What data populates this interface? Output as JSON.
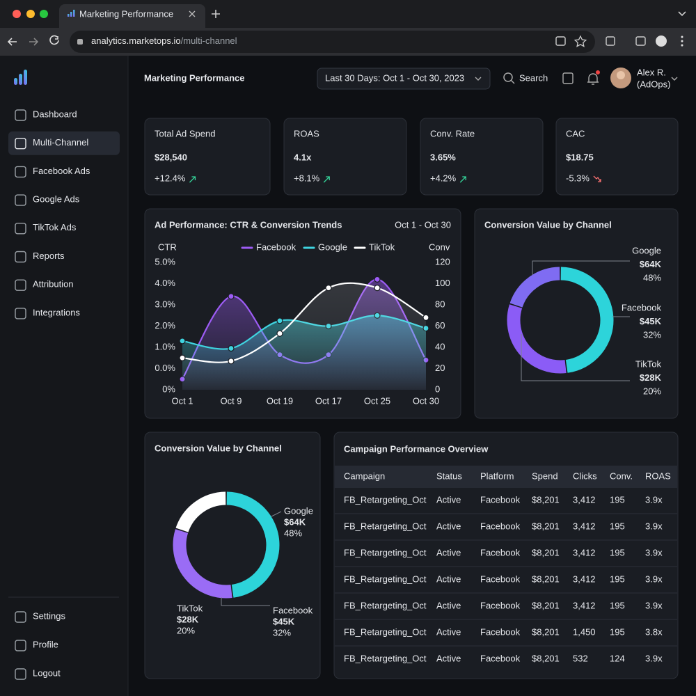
{
  "browser": {
    "tab_title": "Marketing Performance",
    "url_host": "analytics.marketops.io",
    "url_path": "/multi-channel"
  },
  "sidebar": {
    "nav": [
      "Dashboard",
      "Multi-Channel",
      "Facebook Ads",
      "Google Ads",
      "TikTok Ads",
      "Reports",
      "Attribution",
      "Integrations"
    ],
    "active": 1,
    "footer": [
      "Settings",
      "Profile",
      "Logout"
    ]
  },
  "header": {
    "title": "Marketing Performance",
    "date_range": "Last 30 Days: Oct 1 - Oct 30, 2023",
    "search": "Search",
    "user_name": "Alex R.",
    "user_role": "(AdOps)"
  },
  "kpis": [
    {
      "label": "Total Ad Spend",
      "value": "$28,540",
      "change": "+12.4%",
      "trend": "up"
    },
    {
      "label": "ROAS",
      "value": "4.1x",
      "change": "+8.1%",
      "trend": "up"
    },
    {
      "label": "Conv. Rate",
      "value": "3.65%",
      "change": "+4.2%",
      "trend": "up"
    },
    {
      "label": "CAC",
      "value": "$18.75",
      "change": "-5.3%",
      "trend": "down"
    }
  ],
  "chart_data": [
    {
      "type": "line",
      "title": "Ad Performance: CTR & Conversion Trends",
      "subtitle": "Oct 1 - Oct 30",
      "y_label": "CTR",
      "y2_label": "Conv",
      "categories": [
        "Oct 1",
        "Oct 9",
        "Oct 19",
        "Oct 17",
        "Oct 25",
        "Oct 30"
      ],
      "series": [
        {
          "name": "Facebook",
          "color": "#9d5cf5",
          "axis": "y2",
          "values": [
            10,
            88,
            33,
            33,
            104,
            28
          ]
        },
        {
          "name": "Google",
          "color": "#3fd4e0",
          "axis": "y2",
          "values": [
            46,
            39,
            65,
            60,
            70,
            58
          ]
        },
        {
          "name": "TikTok",
          "color": "#ffffff",
          "axis": "y2",
          "values": [
            30,
            27,
            53,
            96,
            96,
            68
          ]
        }
      ],
      "ylim": [
        -1,
        5
      ],
      "yticks": [
        {
          "value": -1,
          "label": "0%"
        },
        {
          "value": 0,
          "label": "0.0%"
        },
        {
          "value": 1,
          "label": "1.0%"
        },
        {
          "value": 2,
          "label": "2.0%"
        },
        {
          "value": 3,
          "label": "3.0%"
        },
        {
          "value": 4,
          "label": "4.0%"
        },
        {
          "value": 5,
          "label": "5.0%"
        }
      ],
      "y2lim": [
        0,
        120
      ],
      "y2ticks": [
        0,
        20,
        40,
        60,
        80,
        100,
        120
      ]
    },
    {
      "type": "donut",
      "title": "Conversion Value by Channel",
      "categories": [
        "Google",
        "Facebook",
        "TikTok"
      ],
      "values": [
        48,
        32,
        20
      ],
      "value_labels": [
        "48%",
        "32%",
        "20%"
      ],
      "amount_labels": [
        "$64K",
        "$45K",
        "$28K"
      ],
      "colors": [
        "#2dd4da",
        "#8b5cf6",
        "#7f6cf2"
      ]
    },
    {
      "type": "donut",
      "title": "Conversion Value by Channel",
      "categories": [
        "Google",
        "Facebook",
        "TikTok"
      ],
      "values": [
        48,
        32,
        20
      ],
      "value_labels": [
        "48%",
        "32%",
        "20%"
      ],
      "amount_labels": [
        "$64K",
        "$45K",
        "$28K"
      ],
      "colors": [
        "#2dd4da",
        "#9a6cf5",
        "#ffffff"
      ]
    }
  ],
  "table": {
    "title": "Campaign Performance Overview",
    "header": [
      "Campaign",
      "Status",
      "Platform",
      "Spend",
      "Clicks",
      "Conv.",
      "ROAS"
    ],
    "rows": [
      [
        "FB_Retargeting_Oct",
        "Active",
        "Facebook",
        "$8,201",
        "3,412",
        "195",
        "3.9x"
      ],
      [
        "FB_Retargeting_Oct",
        "Active",
        "Facebook",
        "$8,201",
        "3,412",
        "195",
        "3.9x"
      ],
      [
        "FB_Retargeting_Oct",
        "Active",
        "Facebook",
        "$8,201",
        "3,412",
        "195",
        "3.9x"
      ],
      [
        "FB_Retargeting_Oct",
        "Active",
        "Facebook",
        "$8,201",
        "3,412",
        "195",
        "3.9x"
      ],
      [
        "FB_Retargeting_Oct",
        "Active",
        "Facebook",
        "$8,201",
        "3,412",
        "195",
        "3.9x"
      ],
      [
        "FB_Retargeting_Oct",
        "Active",
        "Facebook",
        "$8,201",
        "1,450",
        "195",
        "3.8x"
      ],
      [
        "FB_Retargeting_Oct",
        "Active",
        "Facebook",
        "$8,201",
        "532",
        "124",
        "3.9x"
      ]
    ]
  }
}
